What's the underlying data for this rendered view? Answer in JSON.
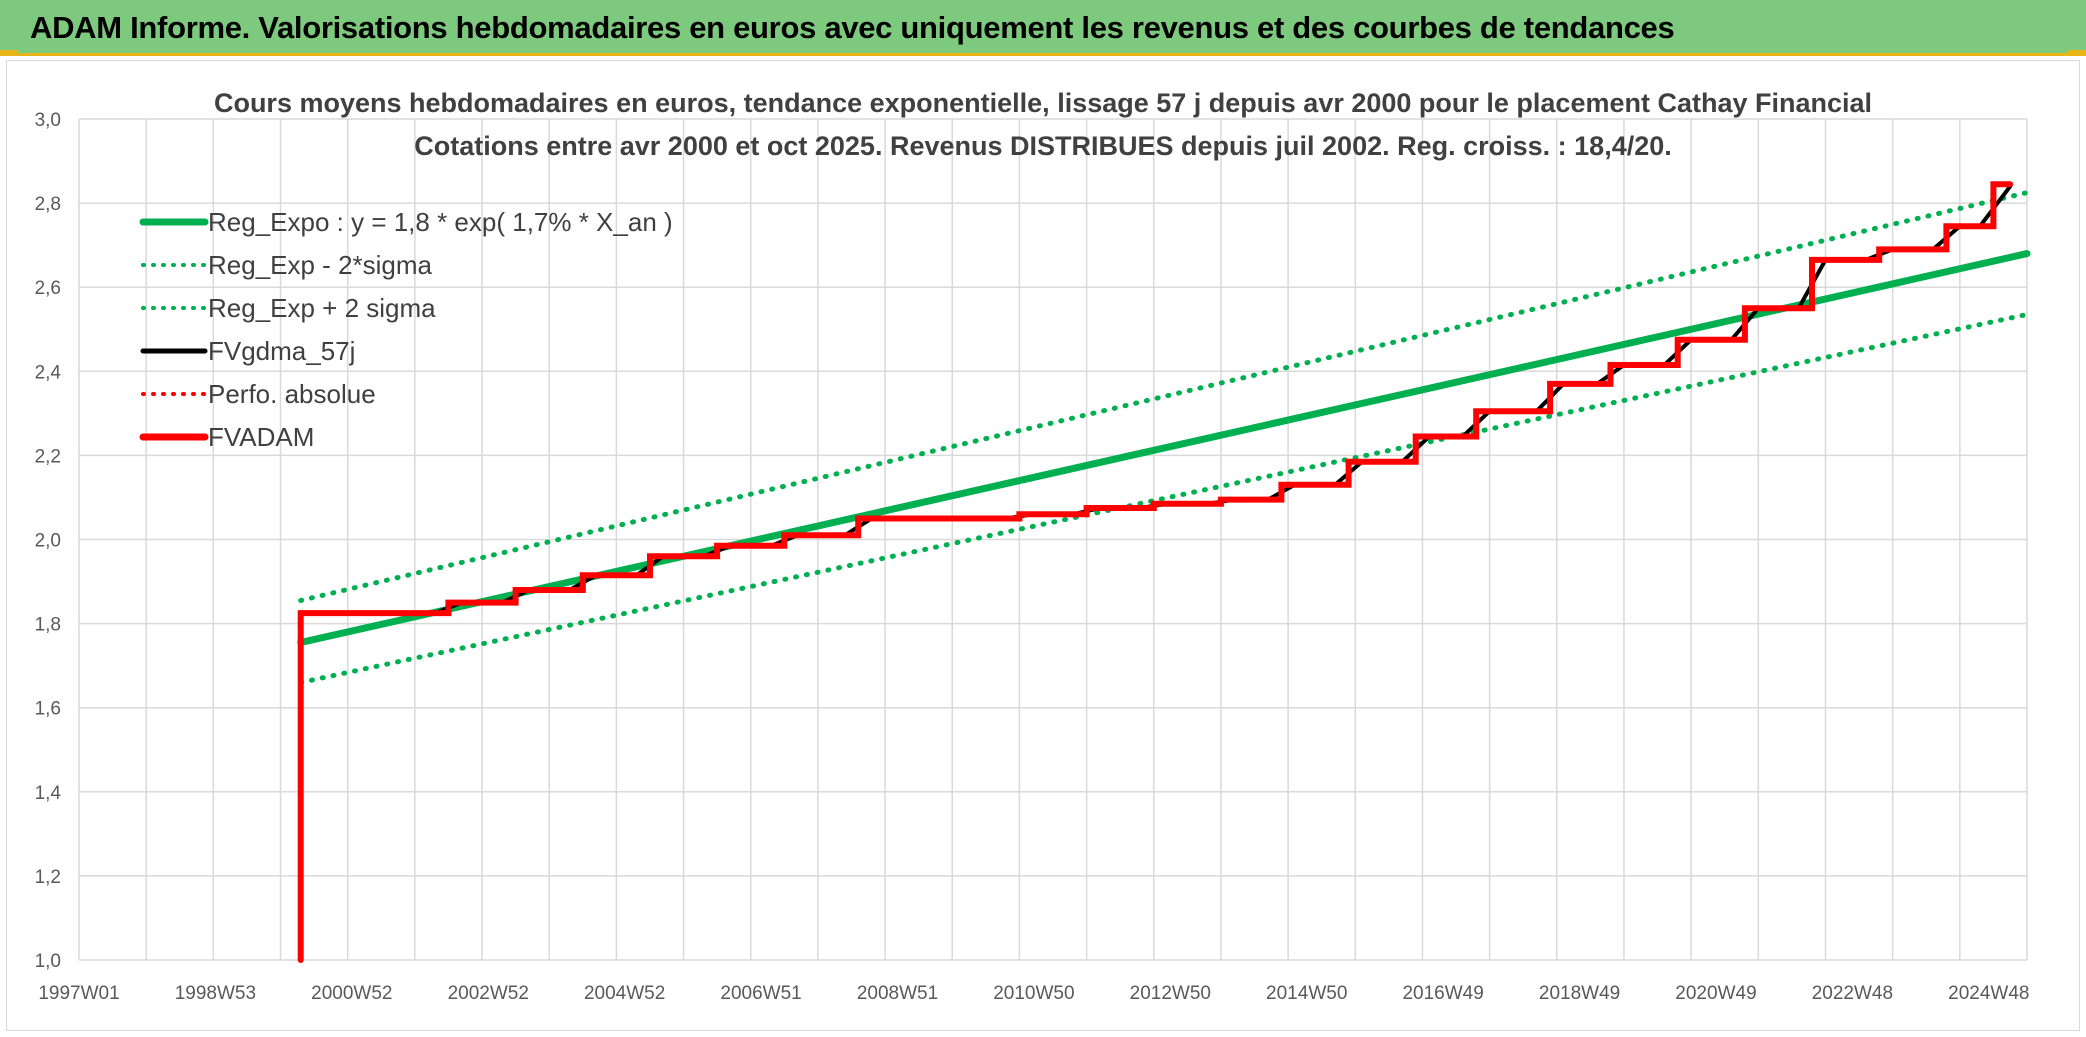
{
  "page": {
    "banner_title": "ADAM Informe. Valorisations hebdomadaires en euros avec uniquement les revenus et des courbes de tendances"
  },
  "colors": {
    "banner_bg": "#7dc97d",
    "banner_accent": "#e9b516",
    "trend_green": "#00b050",
    "price_black": "#000000",
    "adam_red": "#ff0000",
    "grid": "#d9d9d9"
  },
  "chart_data": {
    "type": "line",
    "title": [
      "Cours moyens hebdomadaires en euros, tendance exponentielle, lissage 57 j depuis avr 2000 pour le placement Cathay Financial",
      "Cotations entre avr 2000 et oct 2025. Revenus DISTRIBUES depuis juil 2002. Reg. croiss. : 18,4/20."
    ],
    "xlabel": "",
    "ylabel": "",
    "xlim": [
      1997.0,
      2026.0
    ],
    "ylim": [
      1.0,
      3.0
    ],
    "y_ticks": [
      "1,0",
      "1,2",
      "1,4",
      "1,6",
      "1,8",
      "2,0",
      "2,2",
      "2,4",
      "2,6",
      "2,8",
      "3,0"
    ],
    "x_tick_labels": [
      "1997W01",
      "1998W53",
      "2000W52",
      "2002W52",
      "2004W52",
      "2006W51",
      "2008W51",
      "2010W50",
      "2012W50",
      "2014W50",
      "2016W49",
      "2018W49",
      "2020W49",
      "2022W48",
      "2024W48"
    ],
    "grid": true,
    "legend_placement": "top-left",
    "legend": [
      {
        "label": "Reg_Expo : y = 1,8 * exp( 1,7% *  X_an )",
        "style": "solid-thick",
        "color": "#00b050"
      },
      {
        "label": "Reg_Exp - 2*sigma",
        "style": "dotted",
        "color": "#00b050"
      },
      {
        "label": "Reg_Exp + 2 sigma",
        "style": "dotted",
        "color": "#00b050"
      },
      {
        "label": "FVgdma_57j",
        "style": "solid",
        "color": "#000000"
      },
      {
        "label": "Perfo. absolue",
        "style": "dotted",
        "color": "#ff0000"
      },
      {
        "label": "FVADAM",
        "style": "solid-thick",
        "color": "#ff0000"
      }
    ],
    "series": [
      {
        "name": "Reg_Expo : y = 1,8 * exp( 1,7% *  X_an )",
        "x": [
          2000.3,
          2026.0
        ],
        "y": [
          1.755,
          2.68
        ]
      },
      {
        "name": "Reg_Exp - 2*sigma",
        "x": [
          2000.3,
          2026.0
        ],
        "y": [
          1.66,
          2.535
        ]
      },
      {
        "name": "Reg_Exp + 2 sigma",
        "x": [
          2000.3,
          2026.0
        ],
        "y": [
          1.855,
          2.825
        ]
      },
      {
        "name": "FVADAM",
        "x": [
          2000.3,
          2000.3,
          2002.5,
          2002.5,
          2003.5,
          2003.5,
          2004.5,
          2004.5,
          2005.5,
          2005.5,
          2006.5,
          2006.5,
          2007.5,
          2007.5,
          2008.6,
          2008.6,
          2011.0,
          2011.0,
          2012.0,
          2012.0,
          2013.0,
          2013.0,
          2014.0,
          2014.0,
          2014.9,
          2014.9,
          2015.9,
          2015.9,
          2016.9,
          2016.9,
          2017.8,
          2017.8,
          2018.9,
          2018.9,
          2019.8,
          2019.8,
          2020.8,
          2020.8,
          2021.8,
          2021.8,
          2022.8,
          2022.8,
          2023.8,
          2023.8,
          2024.8,
          2024.8,
          2025.5,
          2025.5,
          2025.75
        ],
        "y": [
          1.0,
          1.825,
          1.825,
          1.85,
          1.85,
          1.88,
          1.88,
          1.915,
          1.915,
          1.96,
          1.96,
          1.985,
          1.985,
          2.01,
          2.01,
          2.05,
          2.05,
          2.06,
          2.06,
          2.075,
          2.075,
          2.085,
          2.085,
          2.095,
          2.095,
          2.13,
          2.13,
          2.185,
          2.185,
          2.245,
          2.245,
          2.305,
          2.305,
          2.37,
          2.37,
          2.415,
          2.415,
          2.475,
          2.475,
          2.55,
          2.55,
          2.665,
          2.665,
          2.69,
          2.69,
          2.745,
          2.745,
          2.845,
          2.845
        ]
      },
      {
        "name": "FVgdma_57j",
        "x": [
          2000.3,
          2002.3,
          2002.7,
          2003.3,
          2003.7,
          2004.3,
          2004.7,
          2005.3,
          2005.7,
          2006.3,
          2006.7,
          2007.3,
          2007.7,
          2008.4,
          2008.8,
          2010.8,
          2011.2,
          2011.8,
          2012.2,
          2012.8,
          2013.2,
          2013.8,
          2014.2,
          2014.7,
          2015.1,
          2015.7,
          2016.1,
          2016.7,
          2017.1,
          2017.6,
          2018.0,
          2018.7,
          2019.1,
          2019.6,
          2020.0,
          2020.6,
          2021.0,
          2021.6,
          2022.0,
          2022.6,
          2023.0,
          2023.6,
          2024.0,
          2024.6,
          2025.0,
          2025.3,
          2025.75
        ],
        "y": [
          1.825,
          1.825,
          1.85,
          1.85,
          1.88,
          1.88,
          1.915,
          1.915,
          1.96,
          1.96,
          1.985,
          1.985,
          2.01,
          2.01,
          2.05,
          2.05,
          2.06,
          2.06,
          2.075,
          2.075,
          2.085,
          2.085,
          2.095,
          2.095,
          2.13,
          2.13,
          2.185,
          2.185,
          2.245,
          2.245,
          2.305,
          2.305,
          2.37,
          2.37,
          2.415,
          2.415,
          2.475,
          2.475,
          2.55,
          2.55,
          2.665,
          2.665,
          2.69,
          2.69,
          2.745,
          2.745,
          2.84
        ]
      }
    ]
  }
}
